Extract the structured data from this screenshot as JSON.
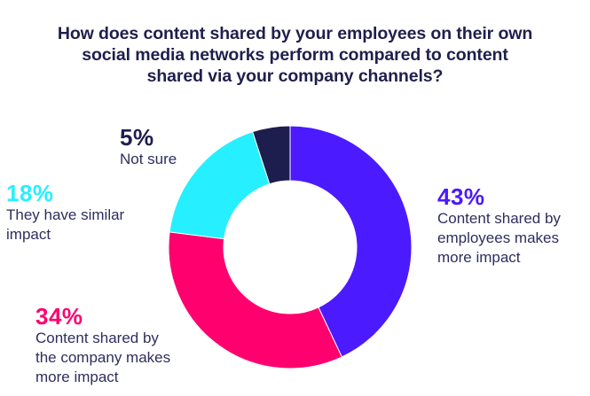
{
  "title_lines": [
    "How does content shared by your employees on their own",
    "social media networks perform compared to content",
    "shared via your company channels?"
  ],
  "labels": {
    "not_sure": {
      "pct": "5%",
      "lines": [
        "Not sure"
      ],
      "color": "#1E1E4E"
    },
    "similar": {
      "pct": "18%",
      "lines": [
        "They have similar",
        "impact"
      ],
      "color": "#26F0FF"
    },
    "company": {
      "pct": "34%",
      "lines": [
        "Content shared by",
        "the company makes",
        "more impact"
      ],
      "color": "#FF006E"
    },
    "employees": {
      "pct": "43%",
      "lines": [
        "Content shared by",
        "employees makes",
        "more impact"
      ],
      "color": "#4B1AFF"
    }
  },
  "chart_data": {
    "type": "pie",
    "subtype": "donut",
    "title": "How does content shared by your employees on their own social media networks perform compared to content shared via your company channels?",
    "categories": [
      "Content shared by employees makes more impact",
      "Content shared by the company makes more impact",
      "They have similar impact",
      "Not sure"
    ],
    "values": [
      43,
      34,
      18,
      5
    ],
    "unit": "%",
    "colors": [
      "#4B1AFF",
      "#FF006E",
      "#26F0FF",
      "#1E1E4E"
    ],
    "start_angle": "12 o'clock, clockwise",
    "legend": "direct labels around chart"
  }
}
